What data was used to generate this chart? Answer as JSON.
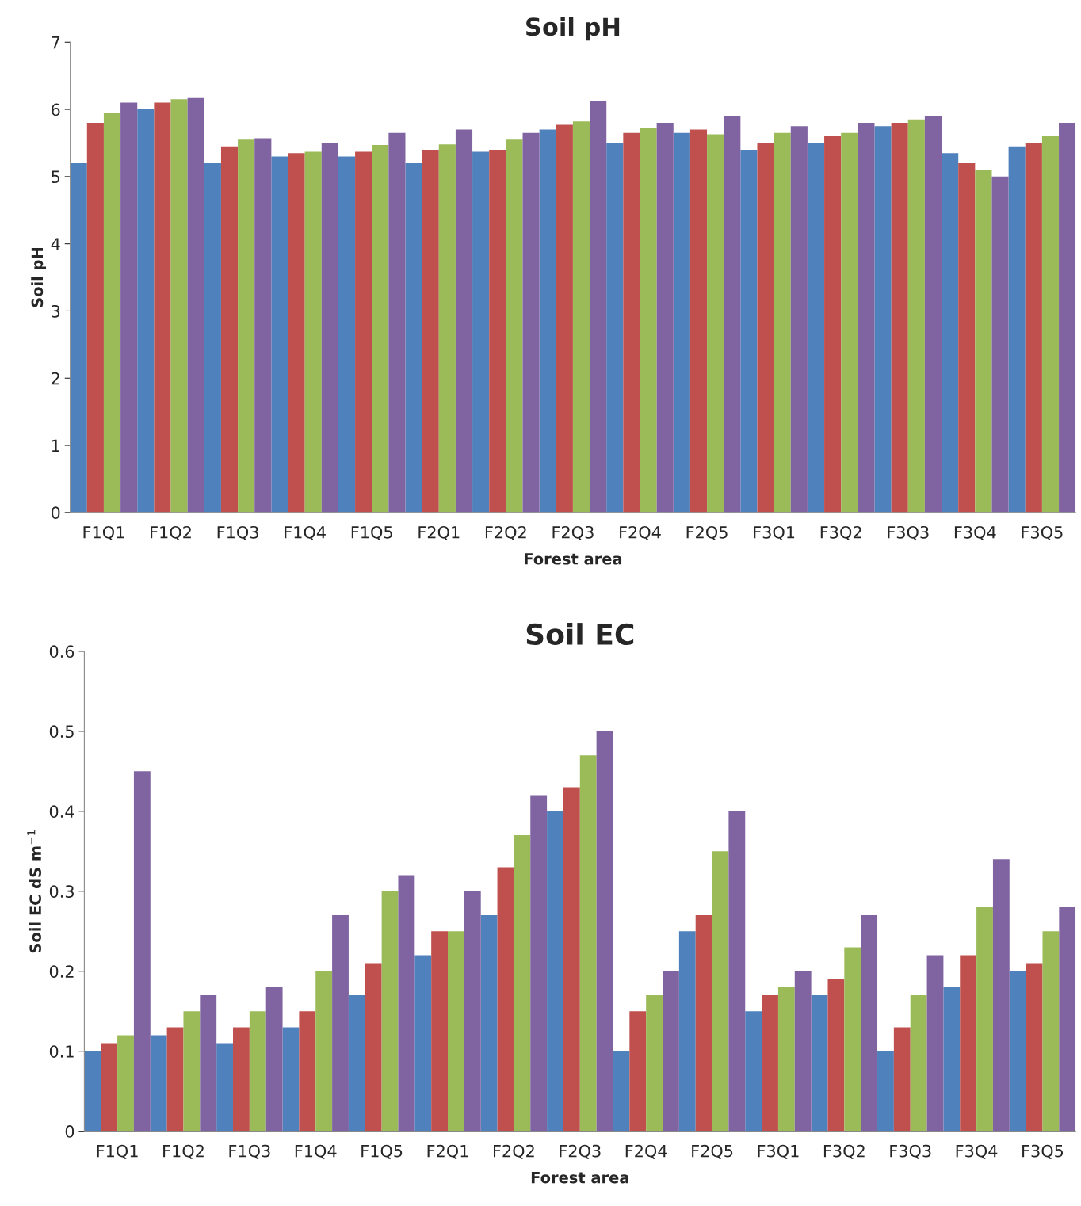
{
  "chart_data": [
    {
      "type": "bar",
      "title": "Soil pH",
      "xlabel": "Forest area",
      "ylabel": "Soil pH",
      "categories": [
        "F1Q1",
        "F1Q2",
        "F1Q3",
        "F1Q4",
        "F1Q5",
        "F2Q1",
        "F2Q2",
        "F2Q3",
        "F2Q4",
        "F2Q5",
        "F3Q1",
        "F3Q2",
        "F3Q3",
        "F3Q4",
        "F3Q5"
      ],
      "series": [
        {
          "color": "#4f81bd",
          "values": [
            5.2,
            6.0,
            5.2,
            5.3,
            5.3,
            5.2,
            5.37,
            5.7,
            5.5,
            5.65,
            5.4,
            5.5,
            5.75,
            5.35,
            5.45
          ]
        },
        {
          "color": "#c0504d",
          "values": [
            5.8,
            6.1,
            5.45,
            5.35,
            5.37,
            5.4,
            5.4,
            5.77,
            5.65,
            5.7,
            5.5,
            5.6,
            5.8,
            5.2,
            5.5
          ]
        },
        {
          "color": "#9bbb59",
          "values": [
            5.95,
            6.15,
            5.55,
            5.37,
            5.47,
            5.48,
            5.55,
            5.82,
            5.72,
            5.63,
            5.65,
            5.65,
            5.85,
            5.1,
            5.6
          ]
        },
        {
          "color": "#8064a2",
          "values": [
            6.1,
            6.17,
            5.57,
            5.5,
            5.65,
            5.7,
            5.65,
            6.12,
            5.8,
            5.9,
            5.75,
            5.8,
            5.9,
            5.0,
            5.8
          ]
        }
      ],
      "ylim": [
        0,
        7
      ],
      "yticks": [
        0,
        1,
        2,
        3,
        4,
        5,
        6,
        7
      ],
      "grid": false
    },
    {
      "type": "bar",
      "title": "Soil EC",
      "xlabel": "Forest area",
      "ylabel": "Soil EC dS m$^{−1}$",
      "categories": [
        "F1Q1",
        "F1Q2",
        "F1Q3",
        "F1Q4",
        "F1Q5",
        "F2Q1",
        "F2Q2",
        "F2Q3",
        "F2Q4",
        "F2Q5",
        "F3Q1",
        "F3Q2",
        "F3Q3",
        "F3Q4",
        "F3Q5"
      ],
      "series": [
        {
          "color": "#4f81bd",
          "values": [
            0.1,
            0.12,
            0.11,
            0.13,
            0.17,
            0.22,
            0.27,
            0.4,
            0.1,
            0.25,
            0.15,
            0.17,
            0.1,
            0.18,
            0.2
          ]
        },
        {
          "color": "#c0504d",
          "values": [
            0.11,
            0.13,
            0.13,
            0.15,
            0.21,
            0.25,
            0.33,
            0.43,
            0.15,
            0.27,
            0.17,
            0.19,
            0.13,
            0.22,
            0.21
          ]
        },
        {
          "color": "#9bbb59",
          "values": [
            0.12,
            0.15,
            0.15,
            0.2,
            0.3,
            0.25,
            0.37,
            0.47,
            0.17,
            0.35,
            0.18,
            0.23,
            0.17,
            0.28,
            0.25
          ]
        },
        {
          "color": "#8064a2",
          "values": [
            0.45,
            0.17,
            0.18,
            0.27,
            0.32,
            0.3,
            0.42,
            0.5,
            0.2,
            0.4,
            0.2,
            0.27,
            0.22,
            0.34,
            0.28
          ]
        }
      ],
      "ylim": [
        0,
        0.6
      ],
      "yticks": [
        0,
        0.1,
        0.2,
        0.3,
        0.4,
        0.5,
        0.6
      ],
      "grid": false
    }
  ]
}
